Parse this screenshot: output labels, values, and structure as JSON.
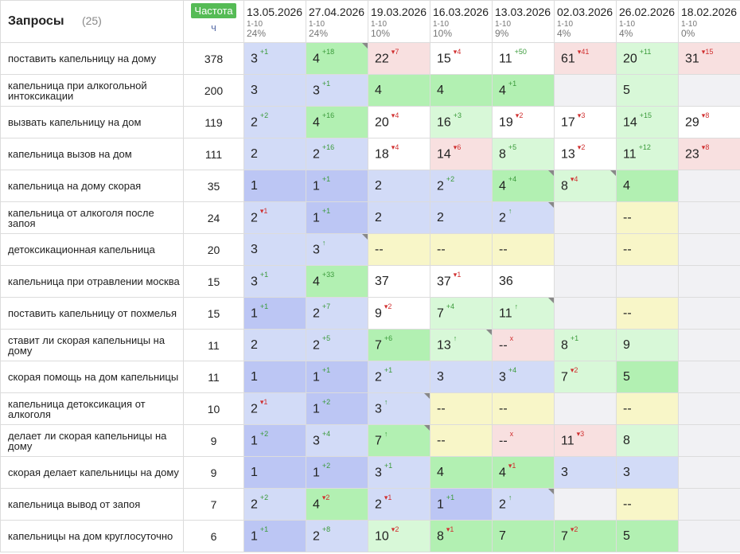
{
  "header": {
    "queries_title": "Запросы",
    "queries_count": "(25)",
    "freq_label": "Частота",
    "freq_sub": "ч",
    "dates": [
      {
        "date": "13.05.2026",
        "range": "1-10",
        "pct": "24%"
      },
      {
        "date": "27.04.2026",
        "range": "1-10",
        "pct": "24%"
      },
      {
        "date": "19.03.2026",
        "range": "1-10",
        "pct": "10%"
      },
      {
        "date": "16.03.2026",
        "range": "1-10",
        "pct": "10%"
      },
      {
        "date": "13.03.2026",
        "range": "1-10",
        "pct": "9%"
      },
      {
        "date": "02.03.2026",
        "range": "1-10",
        "pct": "4%"
      },
      {
        "date": "26.02.2026",
        "range": "1-10",
        "pct": "4%"
      },
      {
        "date": "18.02.2026",
        "range": "1-10",
        "pct": "0%"
      }
    ]
  },
  "colors": {
    "c0": "#ffffff",
    "c1": "#bcc6f4",
    "c2": "#d2dbf7",
    "c3": "#b2f0b2",
    "c4": "#d8f8d8",
    "c5": "#f8e0e0",
    "c6": "#f8f6c8",
    "c7": "#f1f1f4",
    "change_up": "#3a9a3a",
    "change_down": "#d03030",
    "badge": "#55bb55"
  },
  "rows": [
    {
      "query": "поставить капельницу на дому",
      "freq": "378",
      "cells": [
        {
          "v": "3",
          "c": "+1",
          "d": "up",
          "bg": "c2"
        },
        {
          "v": "4",
          "c": "+18",
          "d": "up",
          "bg": "c3",
          "corner": true
        },
        {
          "v": "22",
          "c": "▾7",
          "d": "dn",
          "bg": "c5"
        },
        {
          "v": "15",
          "c": "▾4",
          "d": "dn",
          "bg": "c0"
        },
        {
          "v": "11",
          "c": "+50",
          "d": "up",
          "bg": "c0"
        },
        {
          "v": "61",
          "c": "▾41",
          "d": "dn",
          "bg": "c5"
        },
        {
          "v": "20",
          "c": "+11",
          "d": "up",
          "bg": "c4"
        },
        {
          "v": "31",
          "c": "▾15",
          "d": "dn",
          "bg": "c5"
        }
      ]
    },
    {
      "query": "капельница при алкогольной интоксикации",
      "freq": "200",
      "cells": [
        {
          "v": "3",
          "c": "",
          "d": "",
          "bg": "c2"
        },
        {
          "v": "3",
          "c": "+1",
          "d": "up",
          "bg": "c2"
        },
        {
          "v": "4",
          "c": "",
          "d": "",
          "bg": "c3"
        },
        {
          "v": "4",
          "c": "",
          "d": "",
          "bg": "c3"
        },
        {
          "v": "4",
          "c": "+1",
          "d": "up",
          "bg": "c3"
        },
        {
          "v": "",
          "c": "",
          "d": "",
          "bg": "c7"
        },
        {
          "v": "5",
          "c": "",
          "d": "",
          "bg": "c4"
        },
        {
          "v": "",
          "c": "",
          "d": "",
          "bg": "c7"
        }
      ]
    },
    {
      "query": "вызвать капельницу на дом",
      "freq": "119",
      "cells": [
        {
          "v": "2",
          "c": "+2",
          "d": "up",
          "bg": "c2"
        },
        {
          "v": "4",
          "c": "+16",
          "d": "up",
          "bg": "c3"
        },
        {
          "v": "20",
          "c": "▾4",
          "d": "dn",
          "bg": "c0"
        },
        {
          "v": "16",
          "c": "+3",
          "d": "up",
          "bg": "c4"
        },
        {
          "v": "19",
          "c": "▾2",
          "d": "dn",
          "bg": "c0"
        },
        {
          "v": "17",
          "c": "▾3",
          "d": "dn",
          "bg": "c0"
        },
        {
          "v": "14",
          "c": "+15",
          "d": "up",
          "bg": "c4"
        },
        {
          "v": "29",
          "c": "▾8",
          "d": "dn",
          "bg": "c0"
        }
      ]
    },
    {
      "query": "капельница вызов на дом",
      "freq": "111",
      "cells": [
        {
          "v": "2",
          "c": "",
          "d": "",
          "bg": "c2"
        },
        {
          "v": "2",
          "c": "+16",
          "d": "up",
          "bg": "c2"
        },
        {
          "v": "18",
          "c": "▾4",
          "d": "dn",
          "bg": "c0"
        },
        {
          "v": "14",
          "c": "▾6",
          "d": "dn",
          "bg": "c5"
        },
        {
          "v": "8",
          "c": "+5",
          "d": "up",
          "bg": "c4"
        },
        {
          "v": "13",
          "c": "▾2",
          "d": "dn",
          "bg": "c0"
        },
        {
          "v": "11",
          "c": "+12",
          "d": "up",
          "bg": "c4"
        },
        {
          "v": "23",
          "c": "▾8",
          "d": "dn",
          "bg": "c5"
        }
      ]
    },
    {
      "query": "капельница на дому скорая",
      "freq": "35",
      "cells": [
        {
          "v": "1",
          "c": "",
          "d": "",
          "bg": "c1"
        },
        {
          "v": "1",
          "c": "+1",
          "d": "up",
          "bg": "c1"
        },
        {
          "v": "2",
          "c": "",
          "d": "",
          "bg": "c2"
        },
        {
          "v": "2",
          "c": "+2",
          "d": "up",
          "bg": "c2"
        },
        {
          "v": "4",
          "c": "+4",
          "d": "up",
          "bg": "c3",
          "corner": true
        },
        {
          "v": "8",
          "c": "▾4",
          "d": "dn",
          "bg": "c4",
          "corner": true
        },
        {
          "v": "4",
          "c": "",
          "d": "",
          "bg": "c3"
        },
        {
          "v": "",
          "c": "",
          "d": "",
          "bg": "c7"
        }
      ]
    },
    {
      "query": "капельница от алкоголя после запоя",
      "freq": "24",
      "cells": [
        {
          "v": "2",
          "c": "▾1",
          "d": "dn",
          "bg": "c2"
        },
        {
          "v": "1",
          "c": "+1",
          "d": "up",
          "bg": "c1"
        },
        {
          "v": "2",
          "c": "",
          "d": "",
          "bg": "c2"
        },
        {
          "v": "2",
          "c": "",
          "d": "",
          "bg": "c2"
        },
        {
          "v": "2",
          "c": "↑",
          "d": "up",
          "bg": "c2",
          "corner": true
        },
        {
          "v": "",
          "c": "",
          "d": "",
          "bg": "c7"
        },
        {
          "v": "--",
          "c": "",
          "d": "",
          "bg": "c6"
        },
        {
          "v": "",
          "c": "",
          "d": "",
          "bg": "c7"
        }
      ]
    },
    {
      "query": "детоксикационная капельница",
      "freq": "20",
      "cells": [
        {
          "v": "3",
          "c": "",
          "d": "",
          "bg": "c2"
        },
        {
          "v": "3",
          "c": "↑",
          "d": "up",
          "bg": "c2",
          "corner": true
        },
        {
          "v": "--",
          "c": "",
          "d": "",
          "bg": "c6"
        },
        {
          "v": "--",
          "c": "",
          "d": "",
          "bg": "c6"
        },
        {
          "v": "--",
          "c": "",
          "d": "",
          "bg": "c6"
        },
        {
          "v": "",
          "c": "",
          "d": "",
          "bg": "c7"
        },
        {
          "v": "--",
          "c": "",
          "d": "",
          "bg": "c6"
        },
        {
          "v": "",
          "c": "",
          "d": "",
          "bg": "c7"
        }
      ]
    },
    {
      "query": "капельница при отравлении москва",
      "freq": "15",
      "cells": [
        {
          "v": "3",
          "c": "+1",
          "d": "up",
          "bg": "c2"
        },
        {
          "v": "4",
          "c": "+33",
          "d": "up",
          "bg": "c3"
        },
        {
          "v": "37",
          "c": "",
          "d": "",
          "bg": "c0"
        },
        {
          "v": "37",
          "c": "▾1",
          "d": "dn",
          "bg": "c0"
        },
        {
          "v": "36",
          "c": "",
          "d": "",
          "bg": "c0"
        },
        {
          "v": "",
          "c": "",
          "d": "",
          "bg": "c7"
        },
        {
          "v": "",
          "c": "",
          "d": "",
          "bg": "c7"
        },
        {
          "v": "",
          "c": "",
          "d": "",
          "bg": "c7"
        }
      ]
    },
    {
      "query": "поставить капельницу от похмелья",
      "freq": "15",
      "cells": [
        {
          "v": "1",
          "c": "+1",
          "d": "up",
          "bg": "c1"
        },
        {
          "v": "2",
          "c": "+7",
          "d": "up",
          "bg": "c2"
        },
        {
          "v": "9",
          "c": "▾2",
          "d": "dn",
          "bg": "c0"
        },
        {
          "v": "7",
          "c": "+4",
          "d": "up",
          "bg": "c4"
        },
        {
          "v": "11",
          "c": "↑",
          "d": "up",
          "bg": "c4",
          "corner": true
        },
        {
          "v": "",
          "c": "",
          "d": "",
          "bg": "c7"
        },
        {
          "v": "--",
          "c": "",
          "d": "",
          "bg": "c6"
        },
        {
          "v": "",
          "c": "",
          "d": "",
          "bg": "c7"
        }
      ]
    },
    {
      "query": "ставит ли скорая капельницы на дому",
      "freq": "11",
      "cells": [
        {
          "v": "2",
          "c": "",
          "d": "",
          "bg": "c2"
        },
        {
          "v": "2",
          "c": "+5",
          "d": "up",
          "bg": "c2"
        },
        {
          "v": "7",
          "c": "+6",
          "d": "up",
          "bg": "c3"
        },
        {
          "v": "13",
          "c": "↑",
          "d": "up",
          "bg": "c4",
          "corner": true
        },
        {
          "v": "--",
          "c": "x",
          "d": "dn",
          "bg": "c5"
        },
        {
          "v": "8",
          "c": "+1",
          "d": "up",
          "bg": "c4"
        },
        {
          "v": "9",
          "c": "",
          "d": "",
          "bg": "c4"
        },
        {
          "v": "",
          "c": "",
          "d": "",
          "bg": "c7"
        }
      ]
    },
    {
      "query": "скорая помощь на дом капельницы",
      "freq": "11",
      "cells": [
        {
          "v": "1",
          "c": "",
          "d": "",
          "bg": "c1"
        },
        {
          "v": "1",
          "c": "+1",
          "d": "up",
          "bg": "c1"
        },
        {
          "v": "2",
          "c": "+1",
          "d": "up",
          "bg": "c2"
        },
        {
          "v": "3",
          "c": "",
          "d": "",
          "bg": "c2"
        },
        {
          "v": "3",
          "c": "+4",
          "d": "up",
          "bg": "c2"
        },
        {
          "v": "7",
          "c": "▾2",
          "d": "dn",
          "bg": "c4"
        },
        {
          "v": "5",
          "c": "",
          "d": "",
          "bg": "c3"
        },
        {
          "v": "",
          "c": "",
          "d": "",
          "bg": "c7"
        }
      ]
    },
    {
      "query": "капельница детоксикация от алкоголя",
      "freq": "10",
      "cells": [
        {
          "v": "2",
          "c": "▾1",
          "d": "dn",
          "bg": "c2"
        },
        {
          "v": "1",
          "c": "+2",
          "d": "up",
          "bg": "c1"
        },
        {
          "v": "3",
          "c": "↑",
          "d": "up",
          "bg": "c2",
          "corner": true
        },
        {
          "v": "--",
          "c": "",
          "d": "",
          "bg": "c6"
        },
        {
          "v": "--",
          "c": "",
          "d": "",
          "bg": "c6"
        },
        {
          "v": "",
          "c": "",
          "d": "",
          "bg": "c7"
        },
        {
          "v": "--",
          "c": "",
          "d": "",
          "bg": "c6"
        },
        {
          "v": "",
          "c": "",
          "d": "",
          "bg": "c7"
        }
      ]
    },
    {
      "query": "делает ли скорая капельницы на дому",
      "freq": "9",
      "cells": [
        {
          "v": "1",
          "c": "+2",
          "d": "up",
          "bg": "c1"
        },
        {
          "v": "3",
          "c": "+4",
          "d": "up",
          "bg": "c2"
        },
        {
          "v": "7",
          "c": "↑",
          "d": "up",
          "bg": "c3",
          "corner": true
        },
        {
          "v": "--",
          "c": "",
          "d": "",
          "bg": "c6"
        },
        {
          "v": "--",
          "c": "x",
          "d": "dn",
          "bg": "c5"
        },
        {
          "v": "11",
          "c": "▾3",
          "d": "dn",
          "bg": "c5"
        },
        {
          "v": "8",
          "c": "",
          "d": "",
          "bg": "c4"
        },
        {
          "v": "",
          "c": "",
          "d": "",
          "bg": "c7"
        }
      ]
    },
    {
      "query": "скорая делает капельницы на дому",
      "freq": "9",
      "cells": [
        {
          "v": "1",
          "c": "",
          "d": "",
          "bg": "c1"
        },
        {
          "v": "1",
          "c": "+2",
          "d": "up",
          "bg": "c1"
        },
        {
          "v": "3",
          "c": "+1",
          "d": "up",
          "bg": "c2"
        },
        {
          "v": "4",
          "c": "",
          "d": "",
          "bg": "c3"
        },
        {
          "v": "4",
          "c": "▾1",
          "d": "dn",
          "bg": "c3"
        },
        {
          "v": "3",
          "c": "",
          "d": "",
          "bg": "c2"
        },
        {
          "v": "3",
          "c": "",
          "d": "",
          "bg": "c2"
        },
        {
          "v": "",
          "c": "",
          "d": "",
          "bg": "c7"
        }
      ]
    },
    {
      "query": "капельница вывод от запоя",
      "freq": "7",
      "cells": [
        {
          "v": "2",
          "c": "+2",
          "d": "up",
          "bg": "c2"
        },
        {
          "v": "4",
          "c": "▾2",
          "d": "dn",
          "bg": "c3"
        },
        {
          "v": "2",
          "c": "▾1",
          "d": "dn",
          "bg": "c2"
        },
        {
          "v": "1",
          "c": "+1",
          "d": "up",
          "bg": "c1"
        },
        {
          "v": "2",
          "c": "↑",
          "d": "up",
          "bg": "c2",
          "corner": true
        },
        {
          "v": "",
          "c": "",
          "d": "",
          "bg": "c7"
        },
        {
          "v": "--",
          "c": "",
          "d": "",
          "bg": "c6"
        },
        {
          "v": "",
          "c": "",
          "d": "",
          "bg": "c7"
        }
      ]
    },
    {
      "query": "капельницы на дом круглосуточно",
      "freq": "6",
      "cells": [
        {
          "v": "1",
          "c": "+1",
          "d": "up",
          "bg": "c1"
        },
        {
          "v": "2",
          "c": "+8",
          "d": "up",
          "bg": "c2"
        },
        {
          "v": "10",
          "c": "▾2",
          "d": "dn",
          "bg": "c4"
        },
        {
          "v": "8",
          "c": "▾1",
          "d": "dn",
          "bg": "c3"
        },
        {
          "v": "7",
          "c": "",
          "d": "",
          "bg": "c3"
        },
        {
          "v": "7",
          "c": "▾2",
          "d": "dn",
          "bg": "c3"
        },
        {
          "v": "5",
          "c": "",
          "d": "",
          "bg": "c3"
        },
        {
          "v": "",
          "c": "",
          "d": "",
          "bg": "c7"
        }
      ]
    }
  ]
}
